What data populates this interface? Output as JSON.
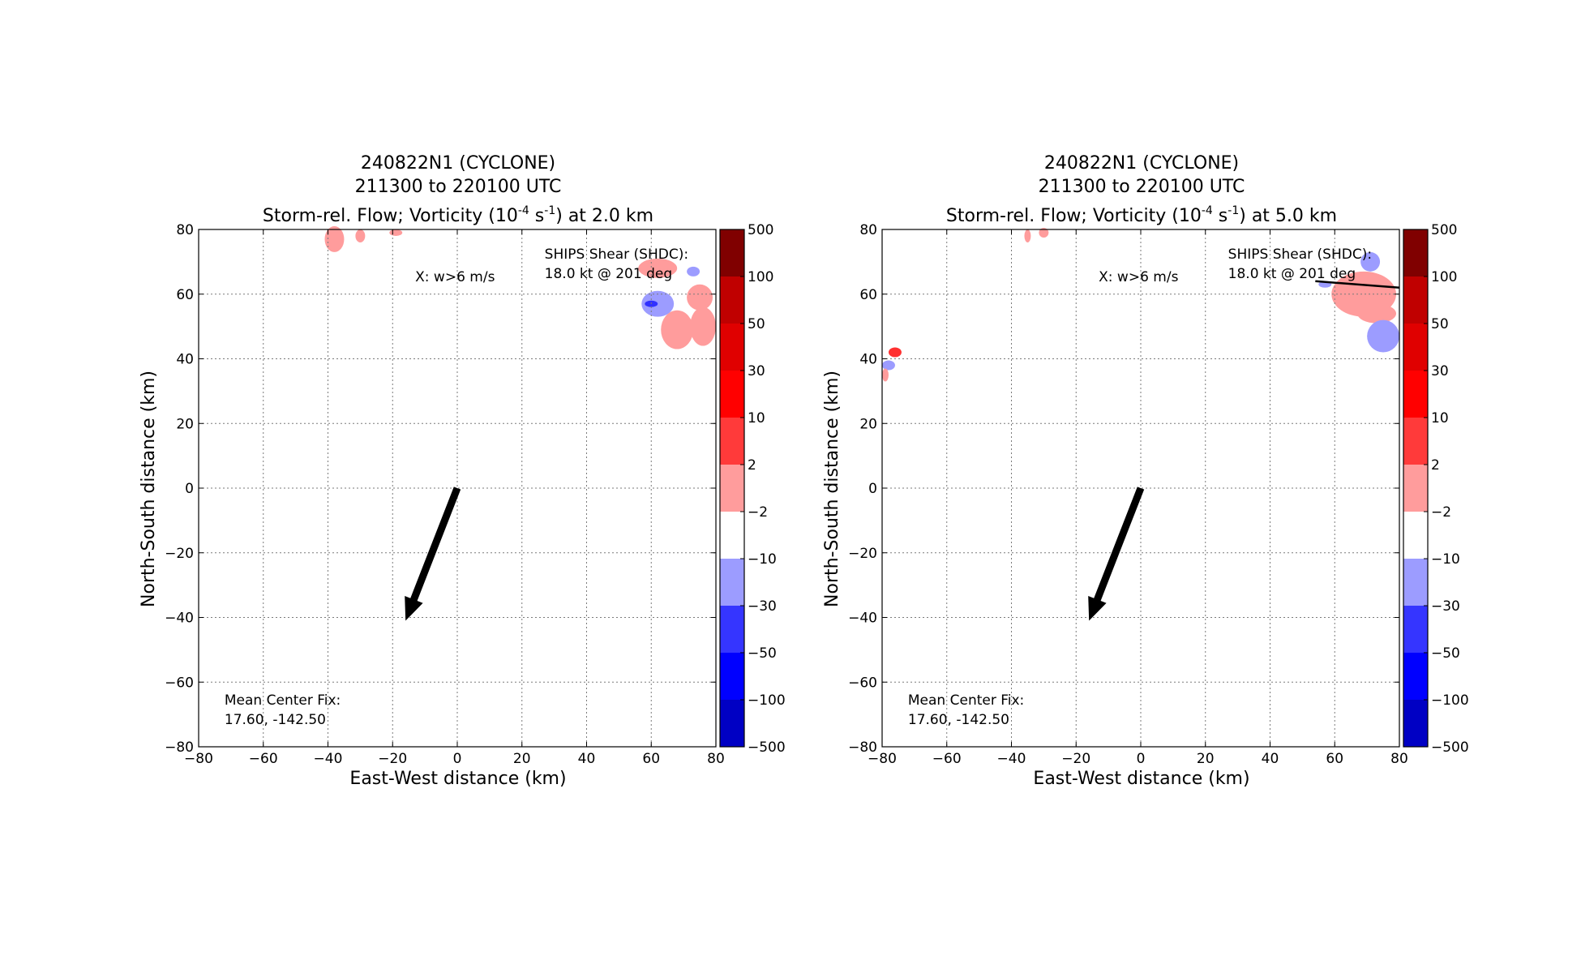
{
  "panels": [
    {
      "title_line1": "240822N1 (CYCLONE)",
      "title_line2": "211300 to 220100 UTC",
      "title_line3_prefix": "Storm-rel. Flow; Vorticity (10",
      "title_exp1": "-4",
      "title_mid": " s",
      "title_exp2": "-1",
      "title_suffix": ") at 2.0 km",
      "xlabel": "East-West distance (km)",
      "ylabel": "North-South distance (km)",
      "legend_w": "X: w>6 m/s",
      "shear_line1": "SHIPS Shear (SHDC):",
      "shear_line2": "18.0 kt @ 201 deg",
      "center_line1": "Mean Center Fix:",
      "center_line2": "17.60, -142.50"
    },
    {
      "title_line1": "240822N1 (CYCLONE)",
      "title_line2": "211300 to 220100 UTC",
      "title_line3_prefix": "Storm-rel. Flow; Vorticity (10",
      "title_exp1": "-4",
      "title_mid": " s",
      "title_exp2": "-1",
      "title_suffix": ") at 5.0 km",
      "xlabel": "East-West distance (km)",
      "ylabel": "North-South distance (km)",
      "legend_w": "X: w>6 m/s",
      "shear_line1": "SHIPS Shear (SHDC):",
      "shear_line2": "18.0 kt @ 201 deg",
      "center_line1": "Mean Center Fix:",
      "center_line2": "17.60, -142.50"
    }
  ],
  "chart_data": [
    {
      "type": "heatmap",
      "xlim": [
        -80,
        80
      ],
      "ylim": [
        -80,
        80
      ],
      "xticks": [
        -80,
        -60,
        -40,
        -20,
        0,
        20,
        40,
        60,
        80
      ],
      "yticks": [
        -80,
        -60,
        -40,
        -20,
        0,
        20,
        40,
        60,
        80
      ],
      "tick_labels": [
        "−80",
        "−60",
        "−40",
        "−20",
        "0",
        "20",
        "40",
        "60",
        "80"
      ],
      "grid": true,
      "shear_arrow": {
        "from": [
          0,
          0
        ],
        "to": [
          -16,
          -41
        ]
      },
      "vorticity_patches": [
        {
          "level": "2 to 10",
          "color": "#ff9c9c",
          "center": [
            -38,
            77
          ],
          "rx": 3,
          "ry": 4
        },
        {
          "level": "2 to 10",
          "color": "#ff9c9c",
          "center": [
            -30,
            78
          ],
          "rx": 1.5,
          "ry": 2
        },
        {
          "level": "2 to 10",
          "color": "#ff9c9c",
          "center": [
            -19,
            79
          ],
          "rx": 2,
          "ry": 1
        },
        {
          "level": "2 to 10",
          "color": "#ff9c9c",
          "center": [
            62,
            68
          ],
          "rx": 6,
          "ry": 3
        },
        {
          "level": "2 to 10",
          "color": "#ff9c9c",
          "center": [
            68,
            49
          ],
          "rx": 5,
          "ry": 6
        },
        {
          "level": "2 to 10",
          "color": "#ff9c9c",
          "center": [
            76,
            50
          ],
          "rx": 4,
          "ry": 6
        },
        {
          "level": "2 to 10",
          "color": "#ff9c9c",
          "center": [
            75,
            59
          ],
          "rx": 4,
          "ry": 4
        },
        {
          "level": "-10 to -2",
          "color": "#9c9cff",
          "center": [
            62,
            57
          ],
          "rx": 5,
          "ry": 4
        },
        {
          "level": "-30 to -10",
          "color": "#3030ff",
          "center": [
            60,
            57
          ],
          "rx": 2,
          "ry": 1
        },
        {
          "level": "-10 to -2",
          "color": "#9c9cff",
          "center": [
            73,
            67
          ],
          "rx": 2,
          "ry": 1.5
        }
      ],
      "wind_height_km": 2.0
    },
    {
      "type": "heatmap",
      "xlim": [
        -80,
        80
      ],
      "ylim": [
        -80,
        80
      ],
      "xticks": [
        -80,
        -60,
        -40,
        -20,
        0,
        20,
        40,
        60,
        80
      ],
      "yticks": [
        -80,
        -60,
        -40,
        -20,
        0,
        20,
        40,
        60,
        80
      ],
      "tick_labels": [
        "−80",
        "−60",
        "−40",
        "−20",
        "0",
        "20",
        "40",
        "60",
        "80"
      ],
      "grid": true,
      "shear_arrow": {
        "from": [
          0,
          0
        ],
        "to": [
          -16,
          -41
        ]
      },
      "shear_line": {
        "from": [
          54,
          64
        ],
        "to": [
          80,
          62
        ]
      },
      "vorticity_patches": [
        {
          "level": "2 to 10",
          "color": "#ff9c9c",
          "center": [
            -35,
            78
          ],
          "rx": 1,
          "ry": 2
        },
        {
          "level": "2 to 10",
          "color": "#ff9c9c",
          "center": [
            -30,
            79
          ],
          "rx": 1.5,
          "ry": 1.5
        },
        {
          "level": "10 to 30",
          "color": "#ff3030",
          "center": [
            -76,
            42
          ],
          "rx": 2,
          "ry": 1.5
        },
        {
          "level": "-10 to -2",
          "color": "#9c9cff",
          "center": [
            -78,
            38
          ],
          "rx": 2,
          "ry": 1.5
        },
        {
          "level": "2 to 10",
          "color": "#ff9c9c",
          "center": [
            -79,
            35
          ],
          "rx": 1,
          "ry": 2
        },
        {
          "level": "2 to 10",
          "color": "#ff9c9c",
          "center": [
            69,
            60
          ],
          "rx": 10,
          "ry": 7
        },
        {
          "level": "2 to 10",
          "color": "#ff9c9c",
          "center": [
            73,
            54
          ],
          "rx": 6,
          "ry": 3
        },
        {
          "level": "-10 to -2",
          "color": "#9c9cff",
          "center": [
            71,
            70
          ],
          "rx": 3,
          "ry": 3
        },
        {
          "level": "-10 to -2",
          "color": "#9c9cff",
          "center": [
            75,
            47
          ],
          "rx": 5,
          "ry": 5
        },
        {
          "level": "-10 to -2",
          "color": "#9c9cff",
          "center": [
            57,
            63
          ],
          "rx": 2,
          "ry": 1
        }
      ],
      "wind_height_km": 5.0
    }
  ],
  "colorbar": {
    "labels": [
      "500",
      "100",
      "50",
      "30",
      "10",
      "2",
      "−2",
      "−10",
      "−30",
      "−50",
      "−100",
      "−500"
    ],
    "colors": [
      "#800000",
      "#c00000",
      "#e00000",
      "#ff0000",
      "#ff3a3a",
      "#ff9c9c",
      "#ffffff",
      "#9c9cff",
      "#3535ff",
      "#0000ff",
      "#0000c4",
      "#000080"
    ]
  }
}
